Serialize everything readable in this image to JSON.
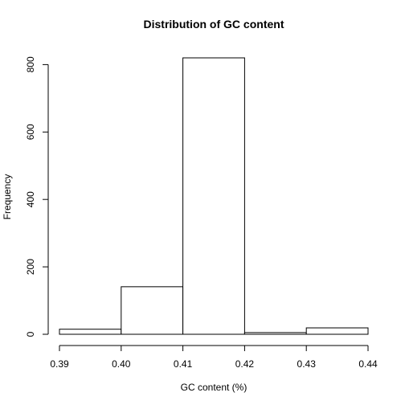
{
  "chart_data": {
    "type": "bar",
    "title": "Distribution of GC content",
    "xlabel": "GC content (%)",
    "ylabel": "Frequency",
    "bins": [
      {
        "start": 0.39,
        "end": 0.4,
        "value": 15
      },
      {
        "start": 0.4,
        "end": 0.41,
        "value": 141
      },
      {
        "start": 0.41,
        "end": 0.42,
        "value": 820
      },
      {
        "start": 0.42,
        "end": 0.43,
        "value": 5
      },
      {
        "start": 0.43,
        "end": 0.44,
        "value": 19
      }
    ],
    "xlim": [
      0.39,
      0.44
    ],
    "ylim": [
      0,
      820
    ],
    "x_ticks": [
      "0.39",
      "0.40",
      "0.41",
      "0.42",
      "0.43",
      "0.44"
    ],
    "y_ticks": [
      "0",
      "200",
      "400",
      "600",
      "800"
    ],
    "grid": false,
    "legend": "none",
    "bar_fill": "#ffffff",
    "bar_stroke": "#000000"
  }
}
